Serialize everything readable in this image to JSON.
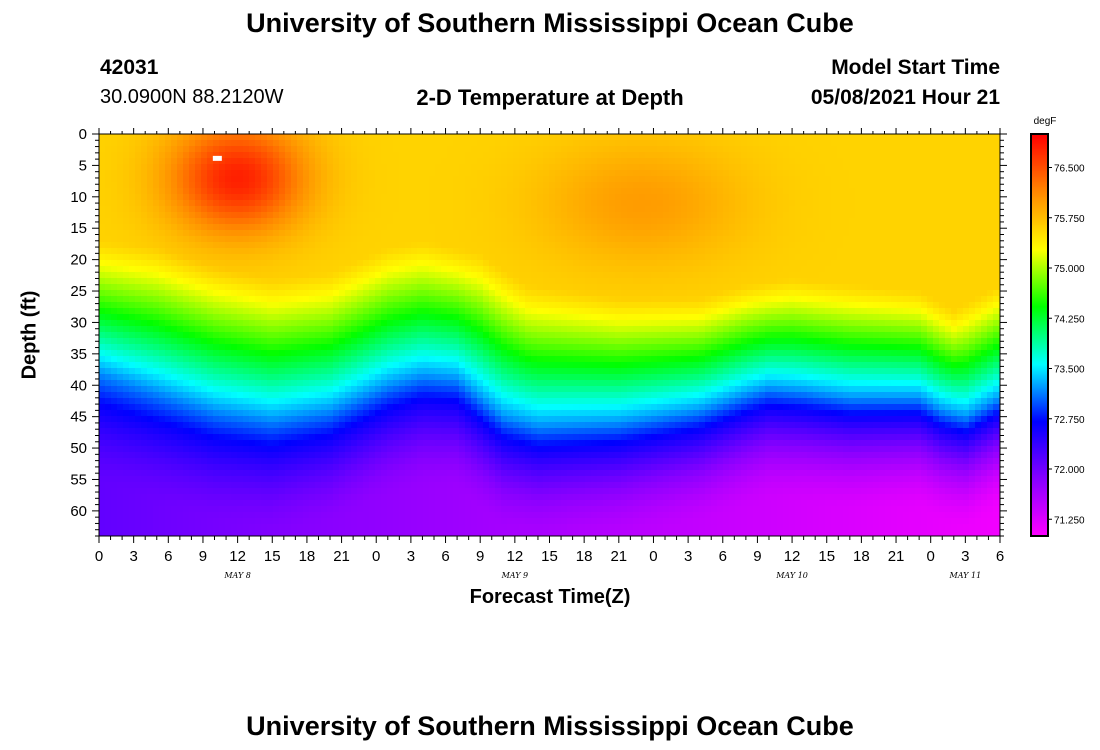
{
  "header": {
    "title": "University of Southern Mississippi Ocean Cube",
    "station_id": "42031",
    "location": "30.0900N  88.2120W",
    "plot_title": "2-D Temperature at Depth",
    "model_start_label": "Model Start Time",
    "model_start_value": "05/08/2021 Hour 21"
  },
  "footer": {
    "title": "University of Southern Mississippi Ocean Cube"
  },
  "chart_data": {
    "type": "heatmap",
    "title": "2-D Temperature at Depth",
    "xlabel": "Forecast Time(Z)",
    "ylabel": "Depth (ft)",
    "x_range_hours": [
      0,
      78
    ],
    "y_range_ft": [
      0,
      64
    ],
    "y_ticks": [
      0,
      5,
      10,
      15,
      20,
      25,
      30,
      35,
      40,
      45,
      50,
      55,
      60
    ],
    "x_tick_labels": [
      "0",
      "3",
      "6",
      "9",
      "12",
      "15",
      "18",
      "21",
      "0",
      "3",
      "6",
      "9",
      "12",
      "15",
      "18",
      "21",
      "0",
      "3",
      "6",
      "9",
      "12",
      "15",
      "18",
      "21",
      "0",
      "3",
      "6"
    ],
    "date_labels": [
      {
        "text": "MAY 8",
        "hour": 12
      },
      {
        "text": "MAY 9",
        "hour": 36
      },
      {
        "text": "MAY 10",
        "hour": 60
      },
      {
        "text": "MAY 11",
        "hour": 75
      }
    ],
    "colorbar": {
      "unit": "degF",
      "min": 71.0,
      "max": 77.0,
      "tick_values": [
        76.5,
        75.75,
        75.0,
        74.25,
        73.5,
        72.75,
        72.0,
        71.25
      ],
      "tick_labels": [
        "76.500",
        "75.750",
        "75.000",
        "74.250",
        "73.500",
        "72.750",
        "72.000",
        "71.250"
      ],
      "colors": [
        "#ff00ff",
        "#8800ff",
        "#0000ff",
        "#00ffff",
        "#00ff00",
        "#ffff00",
        "#ff8800",
        "#ff0000"
      ]
    },
    "thermocline_depth_ft": [
      {
        "hour": 0,
        "depth": 38
      },
      {
        "hour": 5,
        "depth": 41
      },
      {
        "hour": 10,
        "depth": 44
      },
      {
        "hour": 15,
        "depth": 45.5
      },
      {
        "hour": 20,
        "depth": 44
      },
      {
        "hour": 25,
        "depth": 40
      },
      {
        "hour": 28,
        "depth": 38.5
      },
      {
        "hour": 31,
        "depth": 39
      },
      {
        "hour": 33,
        "depth": 42
      },
      {
        "hour": 35,
        "depth": 45
      },
      {
        "hour": 38,
        "depth": 46.5
      },
      {
        "hour": 45,
        "depth": 46
      },
      {
        "hour": 52,
        "depth": 44
      },
      {
        "hour": 56,
        "depth": 41.5
      },
      {
        "hour": 58,
        "depth": 40.5
      },
      {
        "hour": 61,
        "depth": 41
      },
      {
        "hour": 65,
        "depth": 42
      },
      {
        "hour": 71,
        "depth": 42
      },
      {
        "hour": 73,
        "depth": 44
      },
      {
        "hour": 75,
        "depth": 45
      },
      {
        "hour": 78,
        "depth": 42
      }
    ],
    "mixed_layer_depth_ft": [
      {
        "hour": 0,
        "depth": 17
      },
      {
        "hour": 5,
        "depth": 18
      },
      {
        "hour": 10,
        "depth": 21
      },
      {
        "hour": 15,
        "depth": 23
      },
      {
        "hour": 20,
        "depth": 22
      },
      {
        "hour": 25,
        "depth": 18
      },
      {
        "hour": 28,
        "depth": 17
      },
      {
        "hour": 33,
        "depth": 19
      },
      {
        "hour": 37,
        "depth": 24
      },
      {
        "hour": 45,
        "depth": 26
      },
      {
        "hour": 52,
        "depth": 26
      },
      {
        "hour": 56,
        "depth": 24
      },
      {
        "hour": 60,
        "depth": 23
      },
      {
        "hour": 65,
        "depth": 24
      },
      {
        "hour": 71,
        "depth": 25
      },
      {
        "hour": 74,
        "depth": 28
      },
      {
        "hour": 78,
        "depth": 24
      }
    ],
    "warm_cores": [
      {
        "hour": 12,
        "depth": 7,
        "temp": 76.8,
        "spread_h": 6,
        "spread_d": 9
      },
      {
        "hour": 47,
        "depth": 11,
        "temp": 76.0,
        "spread_h": 9,
        "spread_d": 10
      },
      {
        "hour": 74.5,
        "depth": 21,
        "temp": 75.6,
        "spread_h": 3,
        "spread_d": 5
      }
    ],
    "surface_temp_degF": 75.6,
    "bottom_temp_start_degF": 72.1,
    "bottom_temp_end_degF": 71.1
  }
}
